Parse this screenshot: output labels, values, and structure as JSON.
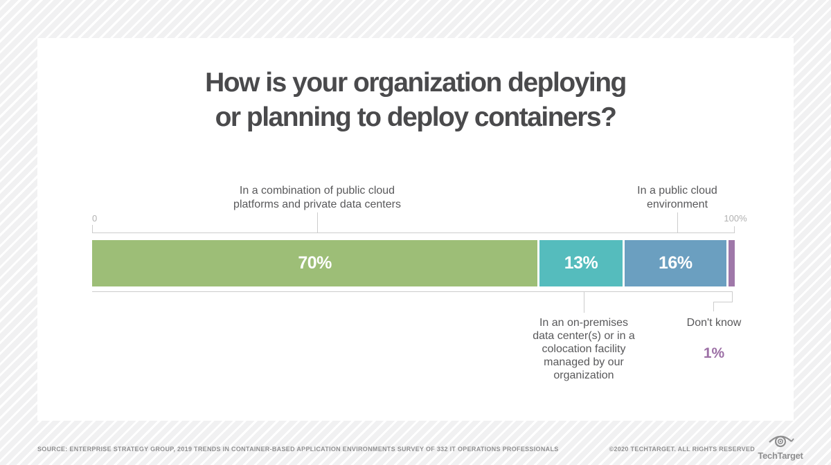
{
  "title": {
    "line1": "How is your organization deploying",
    "line2": "or planning to deploy containers?"
  },
  "axis": {
    "min_label": "0",
    "max_label": "100%"
  },
  "chart_data": {
    "type": "bar",
    "subtype": "horizontal-stacked",
    "title": "How is your organization deploying or planning to deploy containers?",
    "xlim": [
      0,
      100
    ],
    "unit": "%",
    "grid": false,
    "legend": "none",
    "segments": [
      {
        "label": "In a combination of public cloud platforms and private data centers",
        "value": 70,
        "value_label": "70%",
        "color": "#9dbe77",
        "label_position": "above"
      },
      {
        "label": "In an on-premises data center(s) or in a colocation facility managed by our organization",
        "value": 13,
        "value_label": "13%",
        "color": "#55bcbd",
        "label_position": "below"
      },
      {
        "label": "In a public cloud environment",
        "value": 16,
        "value_label": "16%",
        "color": "#6b9fc0",
        "label_position": "above"
      },
      {
        "label": "Don't know",
        "value": 1,
        "value_label": "1%",
        "color": "#9f78a9",
        "label_position": "below"
      }
    ]
  },
  "footer": {
    "source": "SOURCE: ENTERPRISE STRATEGY GROUP, 2019 TRENDS IN CONTAINER-BASED APPLICATION ENVIRONMENTS SURVEY OF 332 IT OPERATIONS PROFESSIONALS",
    "copyright": "©2020 TECHTARGET. ALL RIGHTS RESERVED",
    "logo_text": "TechTarget"
  },
  "colors": {
    "title_text": "#4a4a4c",
    "label_text": "#58585a",
    "axis_line": "#cccccc",
    "axis_tick_text": "#b1b1b1",
    "bar_value_text": "#ffffff",
    "dont_know_value": "#9c6fa5",
    "footer_text": "#8f8f90",
    "card_bg": "#ffffff",
    "page_stripe": "#f1f1f2"
  }
}
